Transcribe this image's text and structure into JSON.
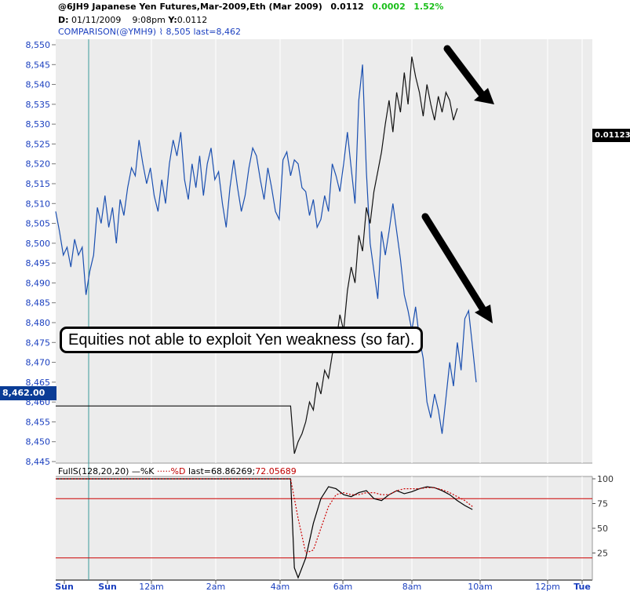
{
  "header": {
    "symbol_line": "@6JH9 Japanese Yen Futures,Mar-2009,Eth (Mar 2009)",
    "last_price": "0.0112",
    "change": "0.0002",
    "change_pct": "1.52%",
    "date_label": "D:",
    "date": "01/11/2009",
    "time": "9:08pm",
    "y_label": "Y:",
    "y_value": "0.0112",
    "comparison": "COMPARISON(@YMH9) ⌇ 8,505 last=8,462"
  },
  "annotation": "Equities not able to exploit Yen weakness (so far).",
  "price_tags": {
    "left": "8,462.00",
    "right": "0.01123"
  },
  "sub_panel": {
    "label_prefix": "FullS(128,20,20)",
    "k_label": "%K",
    "d_label": "%D",
    "last_text": "last=68.86269;",
    "d_value": "72.05689",
    "y_ticks": [
      "100",
      "75",
      "50",
      "25"
    ]
  },
  "chart_data": [
    {
      "type": "line",
      "y_axis_ticks": [
        "8,550",
        "8,545",
        "8,540",
        "8,535",
        "8,530",
        "8,525",
        "8,520",
        "8,515",
        "8,510",
        "8,505",
        "8,500",
        "8,495",
        "8,490",
        "8,485",
        "8,480",
        "8,475",
        "8,470",
        "8,465",
        "8,460",
        "8,455",
        "8,450",
        "8,445"
      ],
      "ylim": [
        8445,
        8550
      ],
      "x_ticks": [
        "Sun",
        "Sun",
        "12am",
        "2am",
        "4am",
        "6am",
        "8am",
        "10am",
        "12pm",
        "Tue"
      ],
      "series": [
        {
          "role": "comparison (@YMH9)",
          "color": "#1a4fb0",
          "points": [
            [
              0,
              8508
            ],
            [
              1,
              8503
            ],
            [
              2,
              8497
            ],
            [
              3,
              8499
            ],
            [
              4,
              8494
            ],
            [
              5,
              8501
            ],
            [
              6,
              8497
            ],
            [
              7,
              8499
            ],
            [
              8,
              8487
            ],
            [
              9,
              8493
            ],
            [
              10,
              8497
            ],
            [
              11,
              8509
            ],
            [
              12,
              8505
            ],
            [
              13,
              8512
            ],
            [
              14,
              8504
            ],
            [
              15,
              8509
            ],
            [
              16,
              8500
            ],
            [
              17,
              8511
            ],
            [
              18,
              8507
            ],
            [
              19,
              8514
            ],
            [
              20,
              8519
            ],
            [
              21,
              8517
            ],
            [
              22,
              8526
            ],
            [
              23,
              8520
            ],
            [
              24,
              8515
            ],
            [
              25,
              8519
            ],
            [
              26,
              8512
            ],
            [
              27,
              8508
            ],
            [
              28,
              8516
            ],
            [
              29,
              8510
            ],
            [
              30,
              8520
            ],
            [
              31,
              8526
            ],
            [
              32,
              8522
            ],
            [
              33,
              8528
            ],
            [
              34,
              8516
            ],
            [
              35,
              8511
            ],
            [
              36,
              8520
            ],
            [
              37,
              8514
            ],
            [
              38,
              8522
            ],
            [
              39,
              8512
            ],
            [
              40,
              8520
            ],
            [
              41,
              8524
            ],
            [
              42,
              8516
            ],
            [
              43,
              8518
            ],
            [
              44,
              8510
            ],
            [
              45,
              8504
            ],
            [
              46,
              8514
            ],
            [
              47,
              8521
            ],
            [
              48,
              8514
            ],
            [
              49,
              8508
            ],
            [
              50,
              8512
            ],
            [
              51,
              8519
            ],
            [
              52,
              8524
            ],
            [
              53,
              8522
            ],
            [
              54,
              8516
            ],
            [
              55,
              8511
            ],
            [
              56,
              8519
            ],
            [
              57,
              8514
            ],
            [
              58,
              8508
            ],
            [
              59,
              8506
            ],
            [
              60,
              8521
            ],
            [
              61,
              8523
            ],
            [
              62,
              8517
            ],
            [
              63,
              8521
            ],
            [
              64,
              8520
            ],
            [
              65,
              8514
            ],
            [
              66,
              8513
            ],
            [
              67,
              8507
            ],
            [
              68,
              8511
            ],
            [
              69,
              8504
            ],
            [
              70,
              8506
            ],
            [
              71,
              8512
            ],
            [
              72,
              8508
            ],
            [
              73,
              8520
            ],
            [
              74,
              8517
            ],
            [
              75,
              8513
            ],
            [
              76,
              8520
            ],
            [
              77,
              8528
            ],
            [
              78,
              8519
            ],
            [
              79,
              8510
            ],
            [
              80,
              8536
            ],
            [
              81,
              8545
            ],
            [
              82,
              8518
            ],
            [
              83,
              8500
            ],
            [
              84,
              8493
            ],
            [
              85,
              8486
            ],
            [
              86,
              8503
            ],
            [
              87,
              8497
            ],
            [
              88,
              8503
            ],
            [
              89,
              8510
            ],
            [
              90,
              8503
            ],
            [
              91,
              8496
            ],
            [
              92,
              8487
            ],
            [
              93,
              8483
            ],
            [
              94,
              8478
            ],
            [
              95,
              8484
            ],
            [
              96,
              8476
            ],
            [
              97,
              8471
            ],
            [
              98,
              8460
            ],
            [
              99,
              8456
            ],
            [
              100,
              8462
            ],
            [
              101,
              8458
            ],
            [
              102,
              8452
            ],
            [
              103,
              8461
            ],
            [
              104,
              8470
            ],
            [
              105,
              8464
            ],
            [
              106,
              8475
            ],
            [
              107,
              8468
            ],
            [
              108,
              8481
            ],
            [
              109,
              8483
            ],
            [
              110,
              8474
            ],
            [
              111,
              8465
            ]
          ]
        },
        {
          "role": "primary (@6JH9)",
          "color": "#111111",
          "points": [
            [
              0,
              8459
            ],
            [
              5,
              8459
            ],
            [
              10,
              8459
            ],
            [
              15,
              8459
            ],
            [
              20,
              8459
            ],
            [
              25,
              8459
            ],
            [
              30,
              8459
            ],
            [
              35,
              8459
            ],
            [
              40,
              8459
            ],
            [
              45,
              8459
            ],
            [
              50,
              8459
            ],
            [
              55,
              8459
            ],
            [
              60,
              8459
            ],
            [
              62,
              8459
            ],
            [
              63,
              8447
            ],
            [
              64,
              8450
            ],
            [
              65,
              8452
            ],
            [
              66,
              8455
            ],
            [
              67,
              8460
            ],
            [
              68,
              8458
            ],
            [
              69,
              8465
            ],
            [
              70,
              8462
            ],
            [
              71,
              8468
            ],
            [
              72,
              8466
            ],
            [
              73,
              8472
            ],
            [
              74,
              8475
            ],
            [
              75,
              8482
            ],
            [
              76,
              8478
            ],
            [
              77,
              8488
            ],
            [
              78,
              8494
            ],
            [
              79,
              8490
            ],
            [
              80,
              8502
            ],
            [
              81,
              8498
            ],
            [
              82,
              8509
            ],
            [
              83,
              8505
            ],
            [
              84,
              8513
            ],
            [
              85,
              8518
            ],
            [
              86,
              8523
            ],
            [
              87,
              8530
            ],
            [
              88,
              8536
            ],
            [
              89,
              8528
            ],
            [
              90,
              8538
            ],
            [
              91,
              8533
            ],
            [
              92,
              8543
            ],
            [
              93,
              8535
            ],
            [
              94,
              8547
            ],
            [
              95,
              8542
            ],
            [
              96,
              8538
            ],
            [
              97,
              8532
            ],
            [
              98,
              8540
            ],
            [
              99,
              8535
            ],
            [
              100,
              8531
            ],
            [
              101,
              8537
            ],
            [
              102,
              8533
            ],
            [
              103,
              8538
            ],
            [
              104,
              8536
            ],
            [
              105,
              8531
            ],
            [
              106,
              8534
            ]
          ]
        }
      ]
    },
    {
      "type": "line",
      "ylim": [
        0,
        100
      ],
      "y_ticks": [
        100,
        75,
        50,
        25
      ],
      "reference_levels": [
        80,
        20
      ],
      "series": [
        {
          "role": "%K",
          "color": "#000000",
          "points": [
            [
              0,
              100
            ],
            [
              60,
              100
            ],
            [
              62,
              100
            ],
            [
              63,
              10
            ],
            [
              64,
              0
            ],
            [
              66,
              20
            ],
            [
              68,
              55
            ],
            [
              70,
              80
            ],
            [
              72,
              92
            ],
            [
              74,
              90
            ],
            [
              76,
              84
            ],
            [
              78,
              82
            ],
            [
              80,
              86
            ],
            [
              82,
              88
            ],
            [
              84,
              80
            ],
            [
              86,
              78
            ],
            [
              88,
              84
            ],
            [
              90,
              88
            ],
            [
              92,
              85
            ],
            [
              94,
              87
            ],
            [
              96,
              90
            ],
            [
              98,
              92
            ],
            [
              100,
              91
            ],
            [
              102,
              88
            ],
            [
              104,
              84
            ],
            [
              106,
              78
            ],
            [
              108,
              73
            ],
            [
              110,
              69
            ]
          ]
        },
        {
          "role": "%D",
          "color": "#cc0000",
          "points": [
            [
              0,
              100
            ],
            [
              62,
              100
            ],
            [
              64,
              60
            ],
            [
              66,
              25
            ],
            [
              68,
              28
            ],
            [
              70,
              50
            ],
            [
              72,
              72
            ],
            [
              74,
              84
            ],
            [
              76,
              86
            ],
            [
              78,
              84
            ],
            [
              80,
              84
            ],
            [
              82,
              86
            ],
            [
              84,
              86
            ],
            [
              86,
              84
            ],
            [
              88,
              84
            ],
            [
              90,
              88
            ],
            [
              92,
              90
            ],
            [
              94,
              90
            ],
            [
              96,
              90
            ],
            [
              98,
              91
            ],
            [
              100,
              91
            ],
            [
              102,
              89
            ],
            [
              104,
              86
            ],
            [
              106,
              82
            ],
            [
              108,
              78
            ],
            [
              110,
              72
            ]
          ]
        }
      ]
    }
  ]
}
